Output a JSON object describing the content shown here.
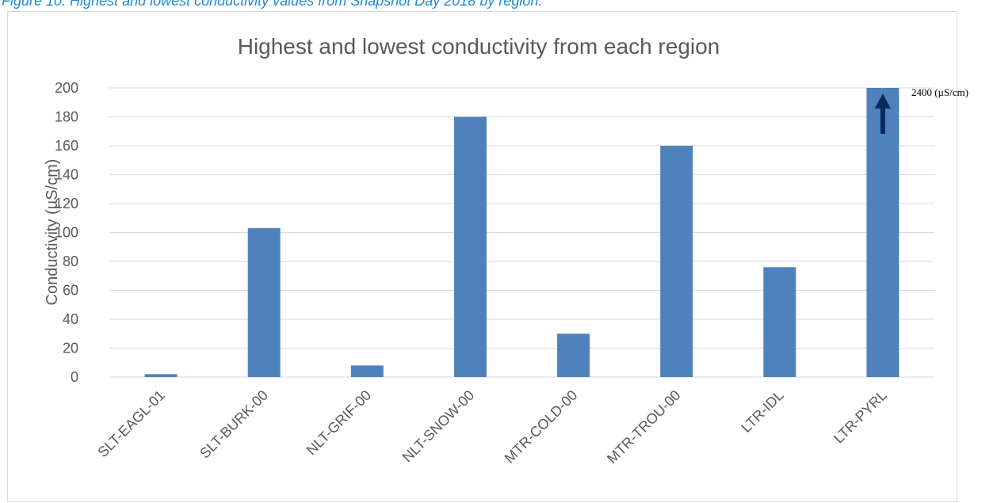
{
  "figure": {
    "caption": "Figure 10: Highest and lowest conductivity values from Snapshot Day 2018 by region."
  },
  "colors": {
    "bar": "#4f81bd",
    "grid": "#d9d9d9",
    "caption": "#1f8ad6",
    "arrow": "#0b2a5c"
  },
  "chart_data": {
    "type": "bar",
    "title": "Highest and lowest conductivity from each region",
    "xlabel": "",
    "ylabel": "Conductivity (µS/cm)",
    "ylim": [
      0,
      200
    ],
    "yticks": [
      0,
      20,
      40,
      60,
      80,
      100,
      120,
      140,
      160,
      180,
      200
    ],
    "grid": true,
    "legend": "none",
    "categories": [
      "SLT-EAGL-01",
      "SLT-BURK-00",
      "NLT-GRIF-00",
      "NLT-SNOW-00",
      "MTR-COLD-00",
      "MTR-TROU-00",
      "LTR-IDL",
      "LTR-PYRL"
    ],
    "values": [
      2,
      103,
      8,
      180,
      30,
      160,
      76,
      200
    ],
    "annotations": [
      {
        "category": "LTR-PYRL",
        "text": "2400 (µS/cm)",
        "icon": "arrow-up-icon",
        "note": "bar truncated at axis maximum"
      }
    ]
  }
}
